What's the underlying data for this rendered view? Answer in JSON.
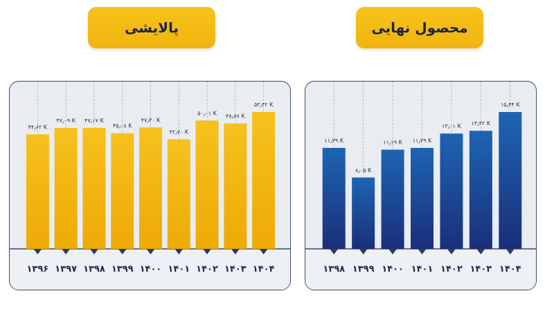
{
  "chart_data": [
    {
      "type": "bar",
      "title": "پالایشی",
      "categories": [
        "۱۳۹۶",
        "۱۳۹۷",
        "۱۳۹۸",
        "۱۳۹۹",
        "۱۴۰۰",
        "۱۴۰۱",
        "۱۴۰۲",
        "۱۴۰۳",
        "۱۴۰۴"
      ],
      "values": [
        44.62,
        47.09,
        47.17,
        45.08,
        47.3,
        42.7,
        50.01,
        48.87,
        53.32
      ],
      "value_labels": [
        "۴۴٫۶۲ K",
        "۴۷٫۰۹ K",
        "۴۷٫۱۷ K",
        "۴۵٫۰۸ K",
        "۴۷٫۳۰ K",
        "۴۲٫۷۰ K",
        "۵۰٫۰۱ K",
        "۴۸٫۸۷ K",
        "۵۳٫۳۲ K"
      ],
      "color": "#f2b70f",
      "ylim": [
        0,
        53.32
      ]
    },
    {
      "type": "bar",
      "title": "محصول نهایی",
      "categories": [
        "۱۳۹۸",
        "۱۳۹۹",
        "۱۴۰۰",
        "۱۴۰۱",
        "۱۴۰۲",
        "۱۴۰۳",
        "۱۴۰۴"
      ],
      "values": [
        11.39,
        8.05,
        11.19,
        11.39,
        13.01,
        13.32,
        15.44
      ],
      "value_labels": [
        "۱۱٫۳۹ K",
        "۸٫۰۵ K",
        "۱۱٫۱۹ K",
        "۱۱٫۳۹ K",
        "۱۳٫۰۱ K",
        "۱۳٫۳۲ K",
        "۱۵٫۴۴ K"
      ],
      "color": "#17549f",
      "ylim": [
        0,
        15.44
      ]
    }
  ]
}
